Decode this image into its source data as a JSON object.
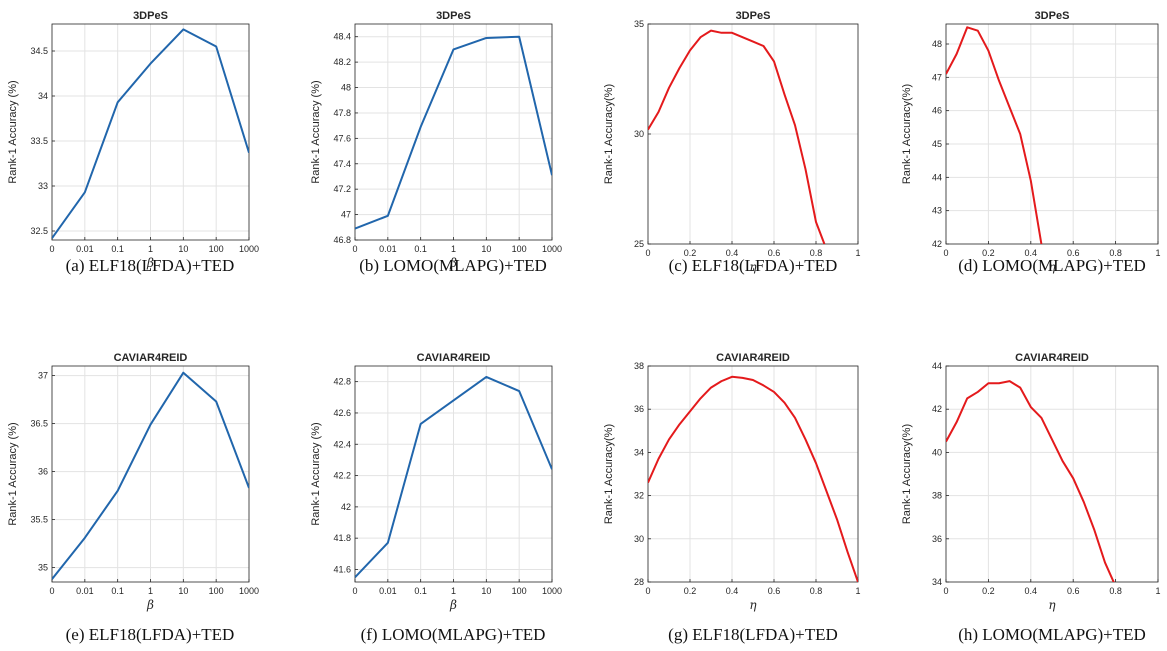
{
  "chart_data": [
    {
      "type": "line",
      "title": "3DPeS",
      "xlabel": "β",
      "ylabel": "Rank-1 Accuracy (%)",
      "caption": "(a)  ELF18(LFDA)+TED",
      "categories": [
        "0",
        "0.01",
        "0.1",
        "1",
        "10",
        "100",
        "1000"
      ],
      "values": [
        32.42,
        32.93,
        33.93,
        34.36,
        34.74,
        34.55,
        33.37
      ],
      "ylim": [
        32.4,
        34.8
      ],
      "yticks": [
        "32.5",
        "33",
        "33.5",
        "34",
        "34.5"
      ],
      "color": "#2166ac",
      "grid": true
    },
    {
      "type": "line",
      "title": "3DPeS",
      "xlabel": "β",
      "ylabel": "Rank-1 Accuracy (%)",
      "caption": "(b)  LOMO(MLAPG)+TED",
      "categories": [
        "0",
        "0.01",
        "0.1",
        "1",
        "10",
        "100",
        "1000"
      ],
      "values": [
        46.89,
        46.99,
        47.69,
        48.3,
        48.39,
        48.4,
        47.31
      ],
      "ylim": [
        46.8,
        48.5
      ],
      "yticks": [
        "46.8",
        "47",
        "47.2",
        "47.4",
        "47.6",
        "47.8",
        "48",
        "48.2",
        "48.4"
      ],
      "color": "#2166ac",
      "grid": true
    },
    {
      "type": "line",
      "title": "3DPeS",
      "xlabel": "η",
      "ylabel": "Rank-1 Accuracy(%)",
      "caption": "(c)  ELF18(LFDA)+TED",
      "x": [
        0,
        0.05,
        0.1,
        0.15,
        0.2,
        0.25,
        0.3,
        0.35,
        0.4,
        0.45,
        0.5,
        0.55,
        0.6,
        0.65,
        0.7,
        0.75,
        0.8,
        0.84
      ],
      "values": [
        30.2,
        31.0,
        32.1,
        33.0,
        33.8,
        34.4,
        34.7,
        34.6,
        34.6,
        34.4,
        34.2,
        34.0,
        33.3,
        31.8,
        30.4,
        28.4,
        26.0,
        25.0
      ],
      "xlim": [
        0,
        1
      ],
      "xticks": [
        "0",
        "0.2",
        "0.4",
        "0.6",
        "0.8",
        "1"
      ],
      "ylim": [
        25,
        35
      ],
      "yticks": [
        "25",
        "30",
        "35"
      ],
      "color": "#e41a1c",
      "grid": true
    },
    {
      "type": "line",
      "title": "3DPeS",
      "xlabel": "η",
      "ylabel": "Rank-1 Accuracy(%)",
      "caption": "(d)  LOMO(MLAPG)+TED",
      "x": [
        0,
        0.05,
        0.1,
        0.15,
        0.2,
        0.25,
        0.3,
        0.35,
        0.4,
        0.45
      ],
      "values": [
        47.1,
        47.7,
        48.5,
        48.4,
        47.8,
        46.9,
        46.1,
        45.3,
        43.9,
        42.0
      ],
      "xlim": [
        0,
        1
      ],
      "xticks": [
        "0",
        "0.2",
        "0.4",
        "0.6",
        "0.8",
        "1"
      ],
      "ylim": [
        42,
        48.6
      ],
      "yticks": [
        "42",
        "43",
        "44",
        "45",
        "46",
        "47",
        "48"
      ],
      "color": "#e41a1c",
      "grid": true
    },
    {
      "type": "line",
      "title": "CAVIAR4REID",
      "xlabel": "β",
      "ylabel": "Rank-1 Accuracy (%)",
      "caption": "(e)  ELF18(LFDA)+TED",
      "categories": [
        "0",
        "0.01",
        "0.1",
        "1",
        "10",
        "100",
        "1000"
      ],
      "values": [
        34.88,
        35.31,
        35.8,
        36.49,
        37.03,
        36.73,
        35.83
      ],
      "ylim": [
        34.85,
        37.1
      ],
      "yticks": [
        "35",
        "35.5",
        "36",
        "36.5",
        "37"
      ],
      "color": "#2166ac",
      "grid": true
    },
    {
      "type": "line",
      "title": "CAVIAR4REID",
      "xlabel": "β",
      "ylabel": "Rank-1 Accuracy (%)",
      "caption": "(f)  LOMO(MLAPG)+TED",
      "categories": [
        "0",
        "0.01",
        "0.1",
        "1",
        "10",
        "100",
        "1000"
      ],
      "values": [
        41.55,
        41.77,
        42.53,
        42.68,
        42.83,
        42.74,
        42.24
      ],
      "ylim": [
        41.52,
        42.9
      ],
      "yticks": [
        "41.6",
        "41.8",
        "42",
        "42.2",
        "42.4",
        "42.6",
        "42.8"
      ],
      "color": "#2166ac",
      "grid": true
    },
    {
      "type": "line",
      "title": "CAVIAR4REID",
      "xlabel": "η",
      "ylabel": "Rank-1 Accuracy(%)",
      "caption": "(g)  ELF18(LFDA)+TED",
      "x": [
        0,
        0.05,
        0.1,
        0.15,
        0.2,
        0.25,
        0.3,
        0.35,
        0.4,
        0.45,
        0.5,
        0.55,
        0.6,
        0.65,
        0.7,
        0.75,
        0.8,
        0.85,
        0.9,
        0.95,
        1.0
      ],
      "values": [
        32.6,
        33.7,
        34.6,
        35.3,
        35.9,
        36.5,
        37.0,
        37.3,
        37.5,
        37.45,
        37.35,
        37.1,
        36.8,
        36.3,
        35.6,
        34.6,
        33.5,
        32.2,
        30.9,
        29.4,
        28.0
      ],
      "xlim": [
        0,
        1
      ],
      "xticks": [
        "0",
        "0.2",
        "0.4",
        "0.6",
        "0.8",
        "1"
      ],
      "ylim": [
        28,
        38
      ],
      "yticks": [
        "28",
        "30",
        "32",
        "34",
        "36",
        "38"
      ],
      "color": "#e41a1c",
      "grid": true
    },
    {
      "type": "line",
      "title": "CAVIAR4REID",
      "xlabel": "η",
      "ylabel": "Rank-1 Accuracy(%)",
      "caption": "(h)  LOMO(MLAPG)+TED",
      "x": [
        0,
        0.05,
        0.1,
        0.15,
        0.2,
        0.25,
        0.3,
        0.35,
        0.4,
        0.45,
        0.5,
        0.55,
        0.6,
        0.65,
        0.7,
        0.75,
        0.8
      ],
      "values": [
        40.5,
        41.4,
        42.5,
        42.8,
        43.2,
        43.2,
        43.3,
        43.0,
        42.1,
        41.6,
        40.6,
        39.6,
        38.8,
        37.7,
        36.4,
        34.9,
        33.8
      ],
      "xlim": [
        0,
        1
      ],
      "xticks": [
        "0",
        "0.2",
        "0.4",
        "0.6",
        "0.8",
        "1"
      ],
      "ylim": [
        34,
        44
      ],
      "yticks": [
        "34",
        "36",
        "38",
        "40",
        "42",
        "44"
      ],
      "color": "#e41a1c",
      "grid": true
    }
  ]
}
